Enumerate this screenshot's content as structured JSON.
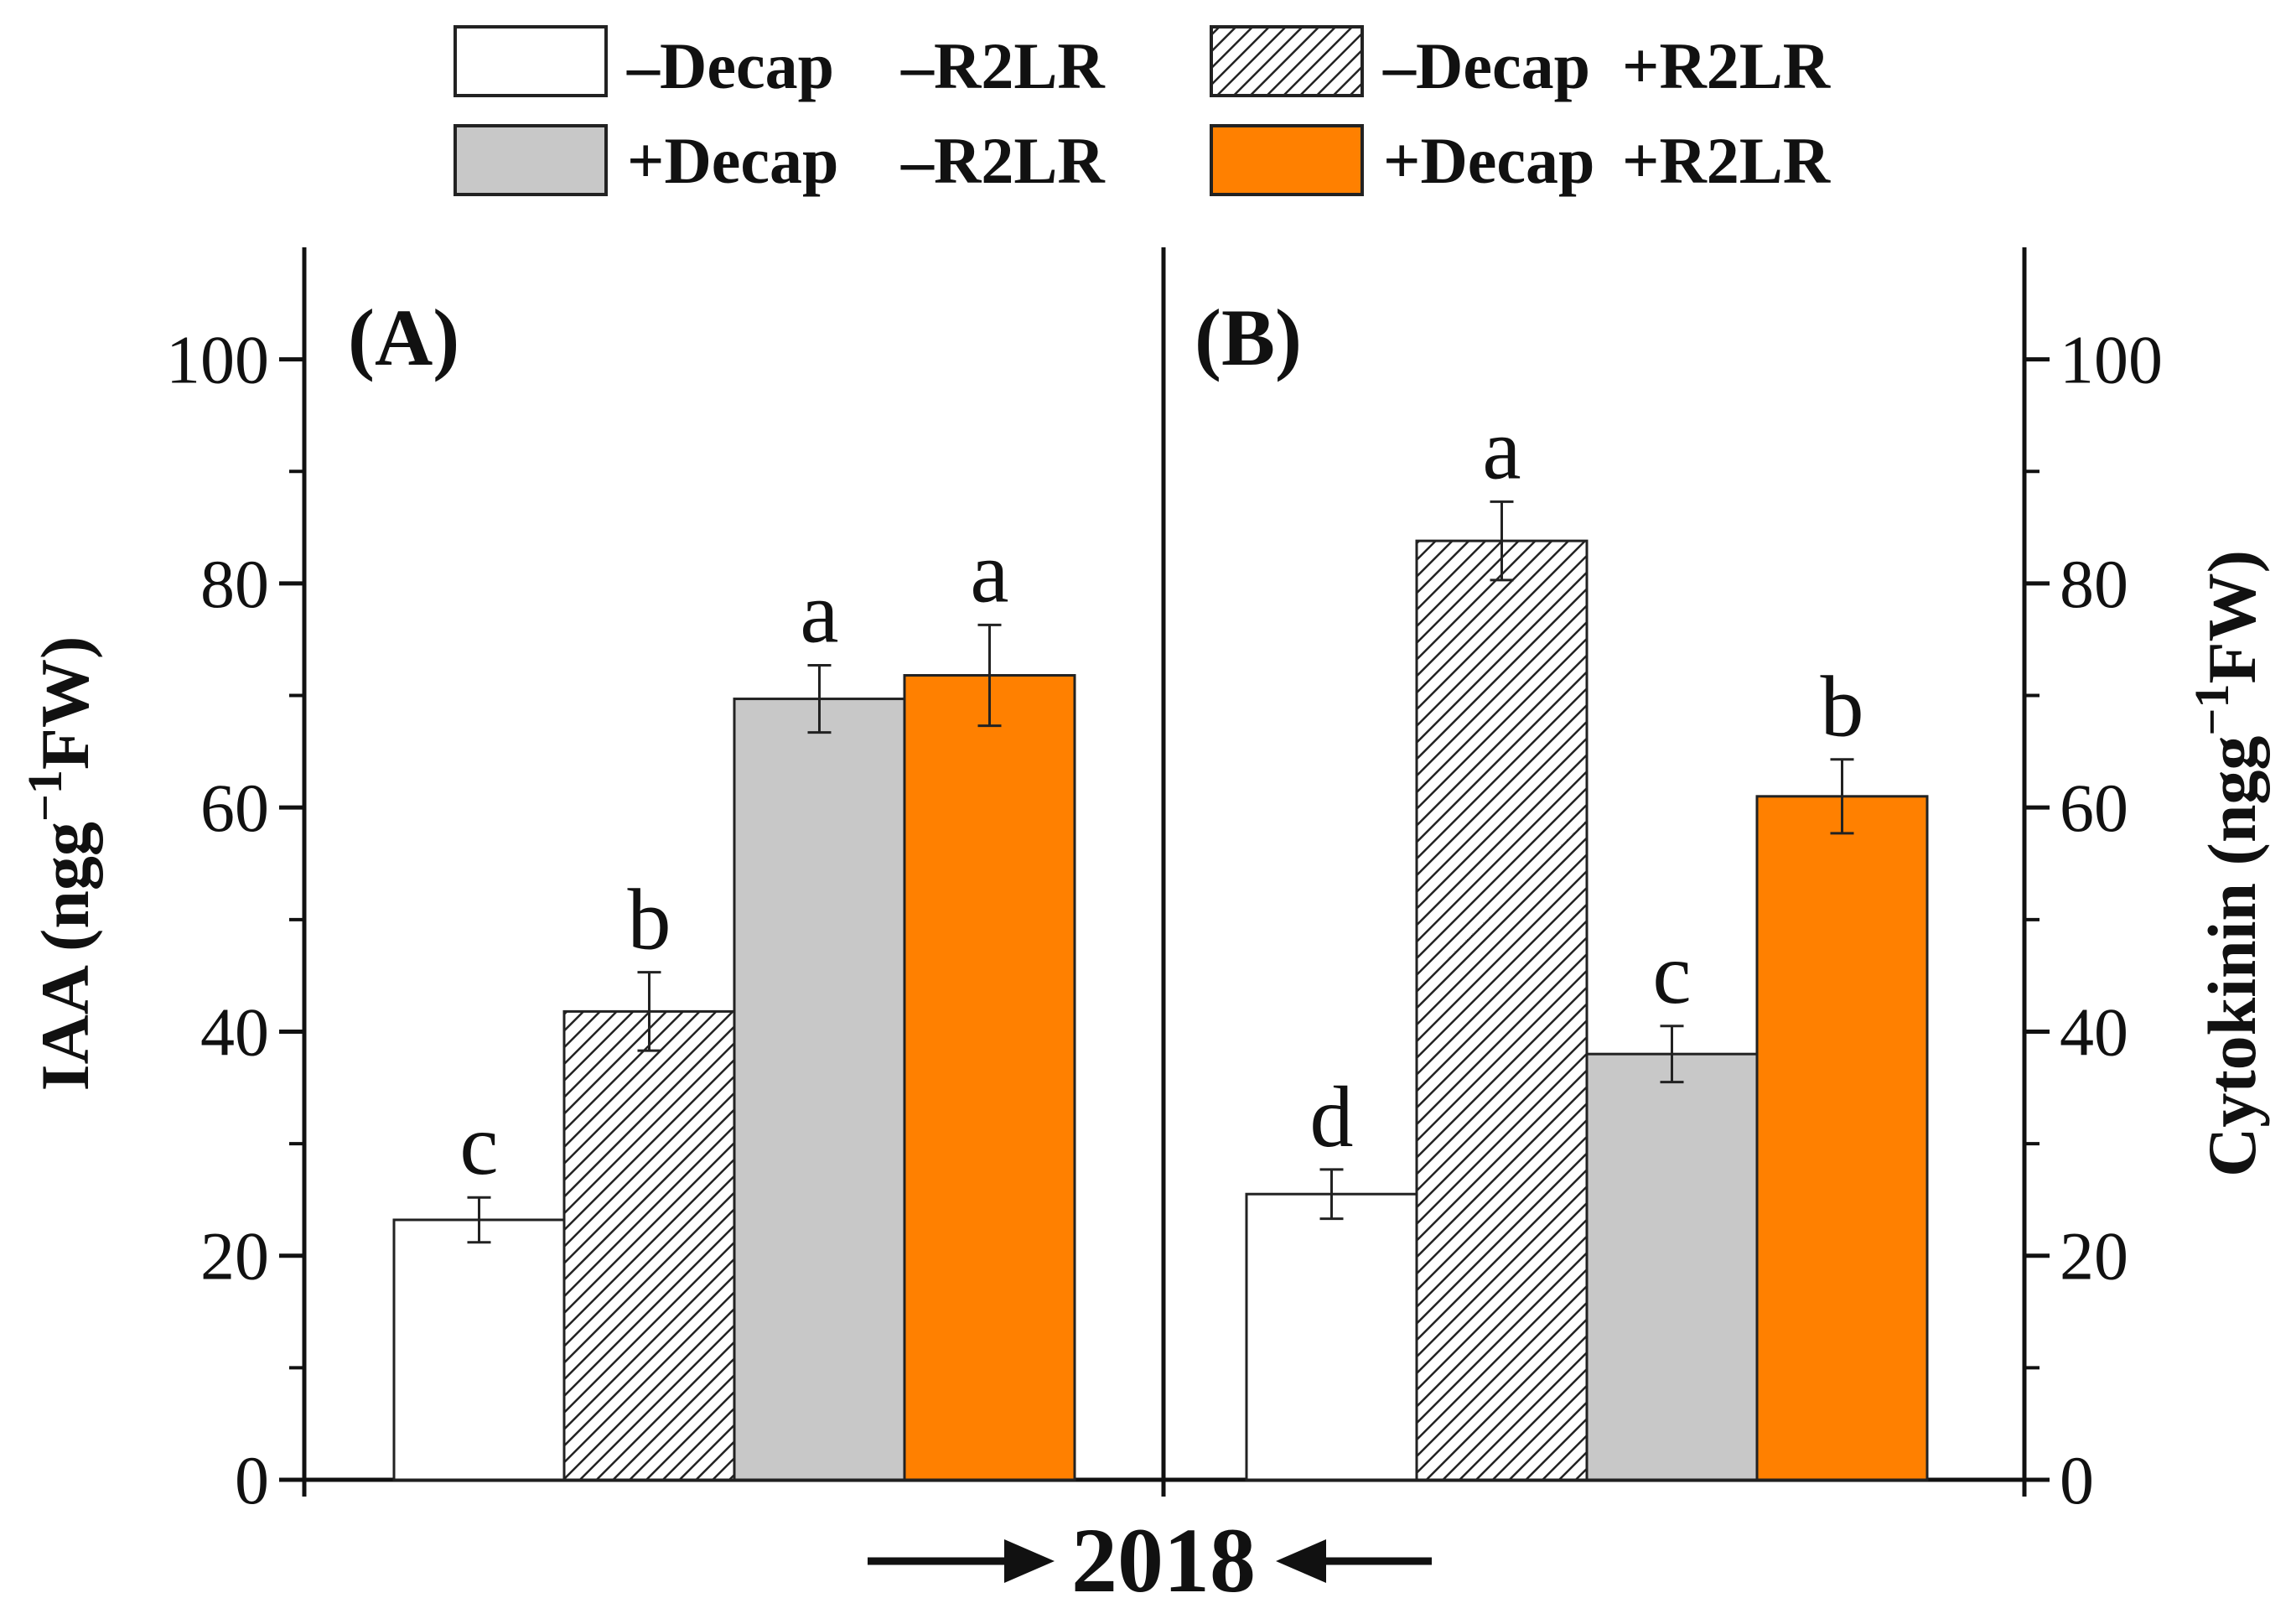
{
  "chart_data": {
    "type": "bar",
    "legend": {
      "placement": "top",
      "entries": [
        {
          "key": "s1",
          "parts": [
            "–Decap",
            "–R2LR"
          ],
          "fill": "#ffffff",
          "pattern": "none"
        },
        {
          "key": "s2",
          "parts": [
            "–Decap",
            "+R2LR"
          ],
          "fill": "#ffffff",
          "pattern": "hatch"
        },
        {
          "key": "s3",
          "parts": [
            "+Decap",
            "–R2LR"
          ],
          "fill": "#c8c8c8",
          "pattern": "none"
        },
        {
          "key": "s4",
          "parts": [
            "+Decap",
            "+R2LR"
          ],
          "fill": "#ff8000",
          "pattern": "none"
        }
      ]
    },
    "panels": [
      {
        "label": "(A)",
        "ylabel": "IAA (ngg⁻¹FW)",
        "ylabel_parts": {
          "pre": "IAA (ngg",
          "sup": "−1",
          "post": "FW)"
        },
        "yaxis_side": "left",
        "ylim": [
          0,
          110
        ],
        "yticks": [
          0,
          20,
          40,
          60,
          80,
          100
        ],
        "bars": [
          {
            "series": "s1",
            "value": 23.2,
            "error": 2.0,
            "letter": "c"
          },
          {
            "series": "s2",
            "value": 41.8,
            "error": 3.5,
            "letter": "b"
          },
          {
            "series": "s3",
            "value": 69.7,
            "error": 3.0,
            "letter": "a"
          },
          {
            "series": "s4",
            "value": 71.8,
            "error": 4.5,
            "letter": "a"
          }
        ]
      },
      {
        "label": "(B)",
        "ylabel": "Cytokinin (ngg⁻¹FW)",
        "ylabel_parts": {
          "pre": "Cytokinin (ngg",
          "sup": "−1",
          "post": "FW)"
        },
        "yaxis_side": "right",
        "ylim": [
          0,
          110
        ],
        "yticks": [
          0,
          20,
          40,
          60,
          80,
          100
        ],
        "bars": [
          {
            "series": "s1",
            "value": 25.5,
            "error": 2.2,
            "letter": "d"
          },
          {
            "series": "s2",
            "value": 83.8,
            "error": 3.5,
            "letter": "a"
          },
          {
            "series": "s3",
            "value": 38.0,
            "error": 2.5,
            "letter": "c"
          },
          {
            "series": "s4",
            "value": 61.0,
            "error": 3.3,
            "letter": "b"
          }
        ]
      }
    ],
    "xlabel": "2018",
    "grid": false
  }
}
